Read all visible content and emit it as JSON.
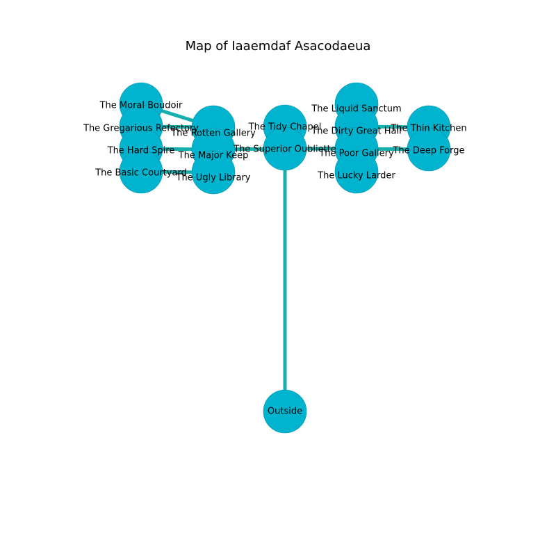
{
  "title": "Map of Iaaemdaf Asacodaeua",
  "colors": {
    "node_fill": "#00b4cf",
    "node_stroke": "#0a8fa3",
    "edge": "#17aeae"
  },
  "rooms": [
    {
      "id": "moral-boudoir",
      "label": "The Moral Boudoir"
    },
    {
      "id": "gregarious-refectory",
      "label": "The Gregarious Refectory"
    },
    {
      "id": "hard-spire",
      "label": "The Hard Spire"
    },
    {
      "id": "basic-courtyard",
      "label": "The Basic Courtyard"
    },
    {
      "id": "rotten-gallery",
      "label": "The Rotten Gallery"
    },
    {
      "id": "major-keep",
      "label": "The Major Keep"
    },
    {
      "id": "ugly-library",
      "label": "The Ugly Library"
    },
    {
      "id": "tidy-chapel",
      "label": "The Tidy Chapel"
    },
    {
      "id": "superior-oubliette",
      "label": "The Superior Oubliette"
    },
    {
      "id": "liquid-sanctum",
      "label": "The Liquid Sanctum"
    },
    {
      "id": "dirty-great-hall",
      "label": "The Dirty Great Hall"
    },
    {
      "id": "poor-gallery",
      "label": "The Poor Gallery"
    },
    {
      "id": "lucky-larder",
      "label": "The Lucky Larder"
    },
    {
      "id": "thin-kitchen",
      "label": "The Thin Kitchen"
    },
    {
      "id": "deep-forge",
      "label": "The Deep Forge"
    },
    {
      "id": "outside",
      "label": "Outside"
    }
  ],
  "connections": [
    [
      "outside",
      "superior-oubliette"
    ],
    [
      "superior-oubliette",
      "major-keep"
    ],
    [
      "superior-oubliette",
      "poor-gallery"
    ],
    [
      "major-keep",
      "rotten-gallery"
    ],
    [
      "major-keep",
      "ugly-library"
    ],
    [
      "rotten-gallery",
      "gregarious-refectory"
    ],
    [
      "rotten-gallery",
      "moral-boudoir"
    ],
    [
      "major-keep",
      "hard-spire"
    ],
    [
      "ugly-library",
      "basic-courtyard"
    ],
    [
      "superior-oubliette",
      "tidy-chapel"
    ],
    [
      "poor-gallery",
      "dirty-great-hall"
    ],
    [
      "poor-gallery",
      "lucky-larder"
    ],
    [
      "dirty-great-hall",
      "liquid-sanctum"
    ],
    [
      "dirty-great-hall",
      "thin-kitchen"
    ],
    [
      "poor-gallery",
      "deep-forge"
    ]
  ]
}
